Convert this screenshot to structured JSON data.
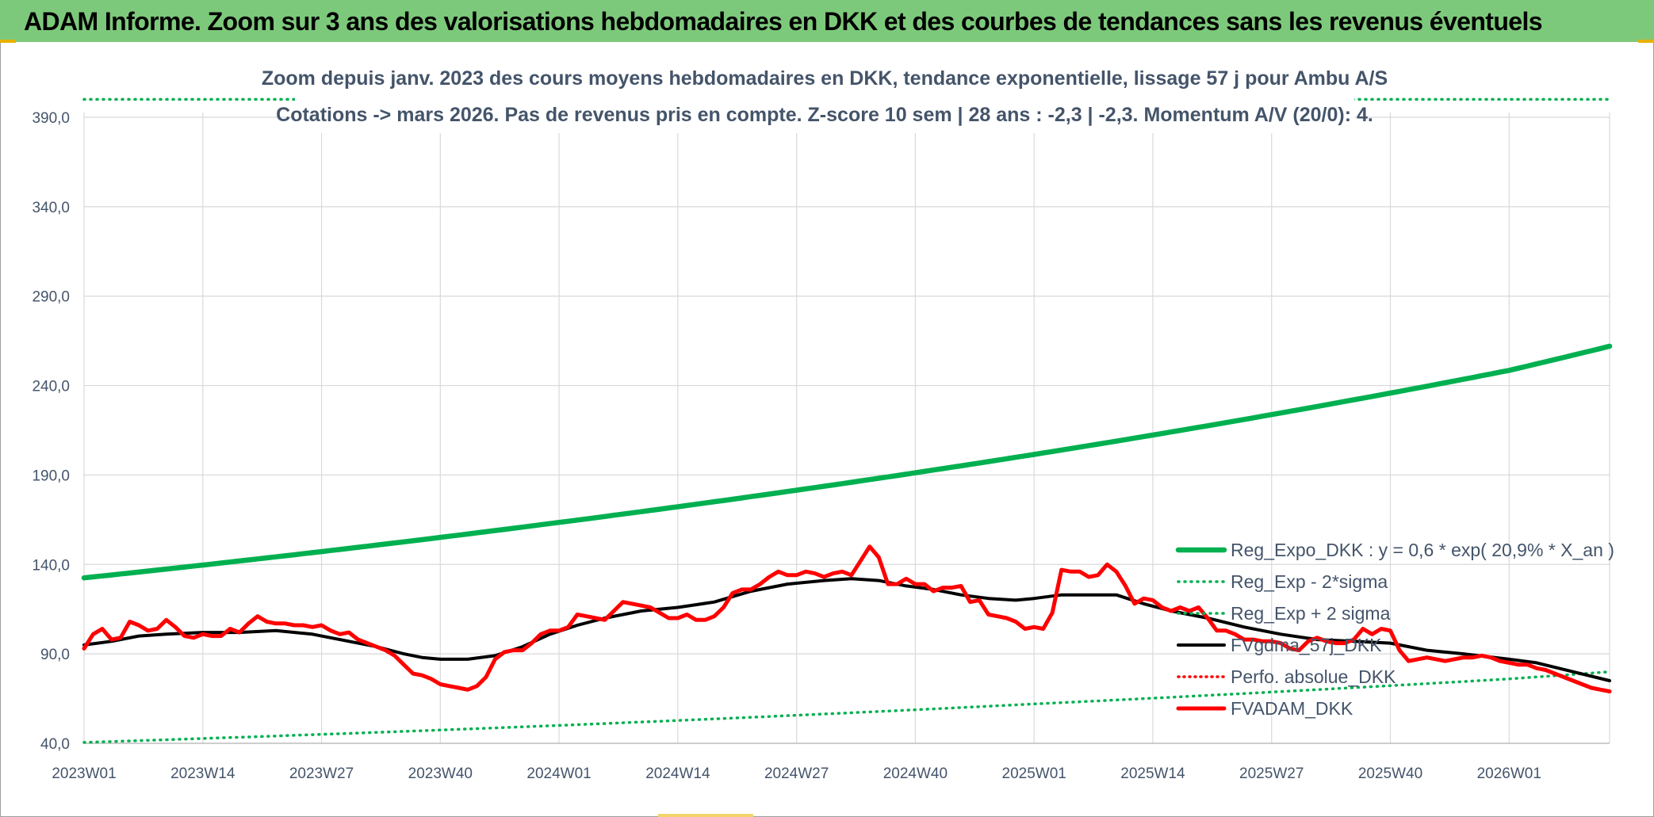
{
  "banner": {
    "title": "ADAM Informe. Zoom sur 3 ans des valorisations hebdomadaires en DKK et des courbes de tendances sans les revenus éventuels"
  },
  "colors": {
    "banner_bg": "#7dc97b",
    "reg_expo": "#00b050",
    "reg_sigma": "#00b050",
    "fvgdma": "#000000",
    "perfo": "#ff0000",
    "fvadam": "#ff0000",
    "text": "#44546a",
    "grid": "#d9d9d9"
  },
  "chart_data": {
    "type": "line",
    "title": [
      "Zoom depuis janv. 2023 des cours moyens hebdomadaires en DKK, tendance exponentielle, lissage 57 j pour Ambu A/S",
      "Cotations -> mars 2026. Pas de revenus pris en compte. Z-score 10 sem | 28 ans : -2,3 | -2,3. Momentum A/V (20/0): 4."
    ],
    "xlabel": "",
    "ylabel": "",
    "x_range": [
      "2023W01",
      "2026W12"
    ],
    "ylim": [
      40,
      390
    ],
    "y_ticks": [
      "40,0",
      "90,0",
      "140,0",
      "190,0",
      "240,0",
      "290,0",
      "340,0",
      "390,0"
    ],
    "x_tick_labels": [
      "2023W01",
      "2023W14",
      "2023W27",
      "2023W40",
      "2024W01",
      "2024W14",
      "2024W27",
      "2024W40",
      "2025W01",
      "2025W14",
      "2025W27",
      "2025W40",
      "2026W01"
    ],
    "grid": true,
    "legend_position": "right",
    "series": [
      {
        "name": "Reg_Expo_DKK : y = 0,6 * exp( 20,9% *  X_an )",
        "style": "solid-thick",
        "points": [
          [
            "2023W01",
            132.5
          ],
          [
            "2024W01",
            163.5
          ],
          [
            "2025W01",
            201.5
          ],
          [
            "2026W01",
            248.5
          ],
          [
            "2026W12",
            262
          ]
        ]
      },
      {
        "name": "Reg_Exp - 2*sigma",
        "style": "dotted",
        "points": [
          [
            "2023W01",
            40.5
          ],
          [
            "2024W01",
            50
          ],
          [
            "2025W01",
            62
          ],
          [
            "2026W01",
            76
          ],
          [
            "2026W12",
            80
          ]
        ]
      },
      {
        "name": "Reg_Exp + 2 sigma",
        "style": "dotted",
        "points": [
          [
            "2023W01",
            400
          ],
          [
            "2026W12",
            400
          ]
        ]
      },
      {
        "name": "FVgdma_57j_DKK",
        "style": "solid",
        "points": [
          [
            "2023W01",
            95
          ],
          [
            "2023W04",
            97
          ],
          [
            "2023W07",
            100
          ],
          [
            "2023W10",
            101
          ],
          [
            "2023W14",
            102
          ],
          [
            "2023W18",
            102
          ],
          [
            "2023W22",
            103
          ],
          [
            "2023W26",
            101
          ],
          [
            "2023W30",
            97
          ],
          [
            "2023W33",
            94
          ],
          [
            "2023W36",
            90
          ],
          [
            "2023W38",
            88
          ],
          [
            "2023W40",
            87
          ],
          [
            "2023W43",
            87
          ],
          [
            "2023W46",
            89
          ],
          [
            "2023W49",
            94
          ],
          [
            "2023W52",
            101
          ],
          [
            "2024W03",
            106
          ],
          [
            "2024W06",
            110
          ],
          [
            "2024W10",
            114
          ],
          [
            "2024W14",
            116
          ],
          [
            "2024W18",
            119
          ],
          [
            "2024W22",
            125
          ],
          [
            "2024W26",
            129
          ],
          [
            "2024W30",
            131
          ],
          [
            "2024W33",
            132
          ],
          [
            "2024W36",
            131
          ],
          [
            "2024W39",
            128
          ],
          [
            "2024W42",
            126
          ],
          [
            "2024W45",
            123
          ],
          [
            "2024W48",
            121
          ],
          [
            "2024W51",
            120
          ],
          [
            "2025W01",
            121
          ],
          [
            "2025W04",
            123
          ],
          [
            "2025W07",
            123
          ],
          [
            "2025W10",
            123
          ],
          [
            "2025W13",
            118
          ],
          [
            "2025W16",
            114
          ],
          [
            "2025W20",
            110
          ],
          [
            "2025W24",
            105
          ],
          [
            "2025W28",
            101
          ],
          [
            "2025W32",
            98
          ],
          [
            "2025W36",
            97
          ],
          [
            "2025W40",
            96
          ],
          [
            "2025W44",
            92
          ],
          [
            "2025W48",
            90
          ],
          [
            "2026W01",
            87
          ],
          [
            "2026W04",
            85
          ],
          [
            "2026W08",
            80
          ],
          [
            "2026W12",
            75
          ]
        ]
      },
      {
        "name": "Perfo. absolue_DKK",
        "style": "dotted",
        "points": []
      },
      {
        "name": "FVADAM_DKK",
        "style": "solid-thick",
        "points": [
          [
            "2023W01",
            93
          ],
          [
            "2023W02",
            101
          ],
          [
            "2023W03",
            104
          ],
          [
            "2023W04",
            98
          ],
          [
            "2023W05",
            99
          ],
          [
            "2023W06",
            108
          ],
          [
            "2023W07",
            106
          ],
          [
            "2023W08",
            103
          ],
          [
            "2023W09",
            104
          ],
          [
            "2023W10",
            109
          ],
          [
            "2023W11",
            105
          ],
          [
            "2023W12",
            100
          ],
          [
            "2023W13",
            99
          ],
          [
            "2023W14",
            101
          ],
          [
            "2023W15",
            100
          ],
          [
            "2023W16",
            100
          ],
          [
            "2023W17",
            104
          ],
          [
            "2023W18",
            102
          ],
          [
            "2023W19",
            107
          ],
          [
            "2023W20",
            111
          ],
          [
            "2023W21",
            108
          ],
          [
            "2023W22",
            107
          ],
          [
            "2023W23",
            107
          ],
          [
            "2023W24",
            106
          ],
          [
            "2023W25",
            106
          ],
          [
            "2023W26",
            105
          ],
          [
            "2023W27",
            106
          ],
          [
            "2023W28",
            103
          ],
          [
            "2023W29",
            101
          ],
          [
            "2023W30",
            102
          ],
          [
            "2023W31",
            98
          ],
          [
            "2023W32",
            96
          ],
          [
            "2023W33",
            94
          ],
          [
            "2023W34",
            92
          ],
          [
            "2023W35",
            89
          ],
          [
            "2023W36",
            84
          ],
          [
            "2023W37",
            79
          ],
          [
            "2023W38",
            78
          ],
          [
            "2023W39",
            76
          ],
          [
            "2023W40",
            73
          ],
          [
            "2023W41",
            72
          ],
          [
            "2023W42",
            71
          ],
          [
            "2023W43",
            70
          ],
          [
            "2023W44",
            72
          ],
          [
            "2023W45",
            77
          ],
          [
            "2023W46",
            87
          ],
          [
            "2023W47",
            91
          ],
          [
            "2023W48",
            92
          ],
          [
            "2023W49",
            92
          ],
          [
            "2023W50",
            96
          ],
          [
            "2023W51",
            101
          ],
          [
            "2023W52",
            103
          ],
          [
            "2024W01",
            103
          ],
          [
            "2024W02",
            105
          ],
          [
            "2024W03",
            112
          ],
          [
            "2024W04",
            111
          ],
          [
            "2024W05",
            110
          ],
          [
            "2024W06",
            109
          ],
          [
            "2024W07",
            114
          ],
          [
            "2024W08",
            119
          ],
          [
            "2024W09",
            118
          ],
          [
            "2024W10",
            117
          ],
          [
            "2024W11",
            116
          ],
          [
            "2024W12",
            113
          ],
          [
            "2024W13",
            110
          ],
          [
            "2024W14",
            110
          ],
          [
            "2024W15",
            112
          ],
          [
            "2024W16",
            109
          ],
          [
            "2024W17",
            109
          ],
          [
            "2024W18",
            111
          ],
          [
            "2024W19",
            116
          ],
          [
            "2024W20",
            124
          ],
          [
            "2024W21",
            126
          ],
          [
            "2024W22",
            126
          ],
          [
            "2024W23",
            129
          ],
          [
            "2024W24",
            133
          ],
          [
            "2024W25",
            136
          ],
          [
            "2024W26",
            134
          ],
          [
            "2024W27",
            134
          ],
          [
            "2024W28",
            136
          ],
          [
            "2024W29",
            135
          ],
          [
            "2024W30",
            133
          ],
          [
            "2024W31",
            135
          ],
          [
            "2024W32",
            136
          ],
          [
            "2024W33",
            134
          ],
          [
            "2024W34",
            142
          ],
          [
            "2024W35",
            150
          ],
          [
            "2024W36",
            144
          ],
          [
            "2024W37",
            129
          ],
          [
            "2024W38",
            129
          ],
          [
            "2024W39",
            132
          ],
          [
            "2024W40",
            129
          ],
          [
            "2024W41",
            129
          ],
          [
            "2024W42",
            125
          ],
          [
            "2024W43",
            127
          ],
          [
            "2024W44",
            127
          ],
          [
            "2024W45",
            128
          ],
          [
            "2024W46",
            119
          ],
          [
            "2024W47",
            120
          ],
          [
            "2024W48",
            112
          ],
          [
            "2024W49",
            111
          ],
          [
            "2024W50",
            110
          ],
          [
            "2024W51",
            108
          ],
          [
            "2024W52",
            104
          ],
          [
            "2025W01",
            105
          ],
          [
            "2025W02",
            104
          ],
          [
            "2025W03",
            113
          ],
          [
            "2025W04",
            137
          ],
          [
            "2025W05",
            136
          ],
          [
            "2025W06",
            136
          ],
          [
            "2025W07",
            133
          ],
          [
            "2025W08",
            134
          ],
          [
            "2025W09",
            140
          ],
          [
            "2025W10",
            136
          ],
          [
            "2025W11",
            128
          ],
          [
            "2025W12",
            118
          ],
          [
            "2025W13",
            121
          ],
          [
            "2025W14",
            120
          ],
          [
            "2025W15",
            116
          ],
          [
            "2025W16",
            114
          ],
          [
            "2025W17",
            116
          ],
          [
            "2025W18",
            114
          ],
          [
            "2025W19",
            116
          ],
          [
            "2025W20",
            110
          ],
          [
            "2025W21",
            103
          ],
          [
            "2025W22",
            103
          ],
          [
            "2025W23",
            101
          ],
          [
            "2025W24",
            98
          ],
          [
            "2025W25",
            98
          ],
          [
            "2025W26",
            97
          ],
          [
            "2025W27",
            97
          ],
          [
            "2025W28",
            96
          ],
          [
            "2025W29",
            93
          ],
          [
            "2025W30",
            92
          ],
          [
            "2025W31",
            97
          ],
          [
            "2025W32",
            99
          ],
          [
            "2025W33",
            97
          ],
          [
            "2025W34",
            96
          ],
          [
            "2025W35",
            96
          ],
          [
            "2025W36",
            98
          ],
          [
            "2025W37",
            104
          ],
          [
            "2025W38",
            101
          ],
          [
            "2025W39",
            104
          ],
          [
            "2025W40",
            103
          ],
          [
            "2025W41",
            92
          ],
          [
            "2025W42",
            86
          ],
          [
            "2025W43",
            87
          ],
          [
            "2025W44",
            88
          ],
          [
            "2025W45",
            87
          ],
          [
            "2025W46",
            86
          ],
          [
            "2025W47",
            87
          ],
          [
            "2025W48",
            88
          ],
          [
            "2025W49",
            88
          ],
          [
            "2025W50",
            89
          ],
          [
            "2025W51",
            88
          ],
          [
            "2025W52",
            86
          ],
          [
            "2026W01",
            85
          ],
          [
            "2026W02",
            84
          ],
          [
            "2026W03",
            84
          ],
          [
            "2026W04",
            82
          ],
          [
            "2026W05",
            81
          ],
          [
            "2026W06",
            79
          ],
          [
            "2026W07",
            77
          ],
          [
            "2026W08",
            75
          ],
          [
            "2026W09",
            73
          ],
          [
            "2026W10",
            71
          ],
          [
            "2026W11",
            70
          ],
          [
            "2026W12",
            69
          ]
        ]
      }
    ]
  }
}
